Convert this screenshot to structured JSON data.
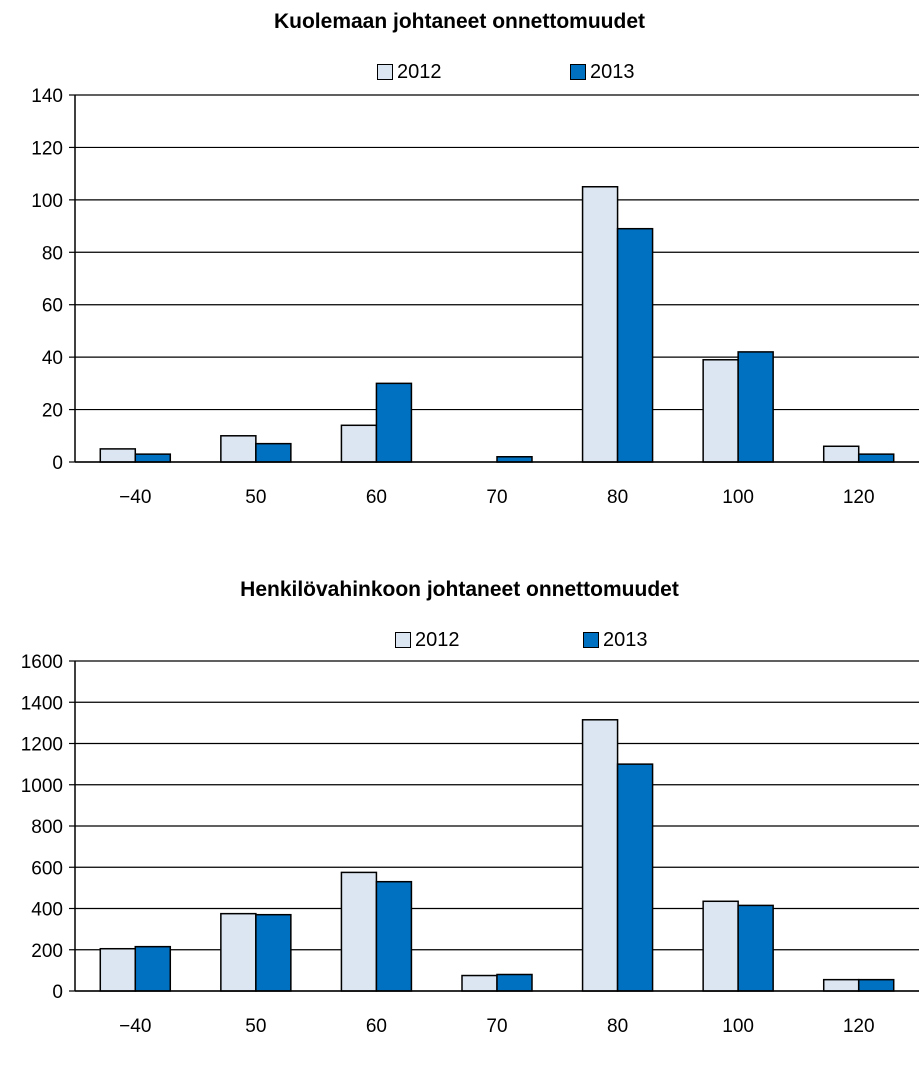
{
  "colors": {
    "series_2012": "#dce6f2",
    "series_2013": "#0070c0",
    "outline": "#000000",
    "grid": "#000000"
  },
  "chart_data": [
    {
      "type": "bar",
      "title": "Kuolemaan johtaneet onnettomuudet",
      "categories": [
        "−40",
        "50",
        "60",
        "70",
        "80",
        "100",
        "120"
      ],
      "series": [
        {
          "name": "2012",
          "values": [
            5,
            10,
            14,
            0,
            105,
            39,
            6
          ]
        },
        {
          "name": "2013",
          "values": [
            3,
            7,
            30,
            2,
            89,
            42,
            3
          ]
        }
      ],
      "ylim": [
        0,
        140
      ],
      "yticks": [
        "0",
        "20",
        "40",
        "60",
        "80",
        "100",
        "120",
        "140"
      ],
      "xlabel": "",
      "ylabel": "",
      "grid": true,
      "legend": "top"
    },
    {
      "type": "bar",
      "title": "Henkilövahinkoon johtaneet onnettomuudet",
      "categories": [
        "−40",
        "50",
        "60",
        "70",
        "80",
        "100",
        "120"
      ],
      "series": [
        {
          "name": "2012",
          "values": [
            205,
            375,
            575,
            75,
            1315,
            435,
            55
          ]
        },
        {
          "name": "2013",
          "values": [
            215,
            370,
            530,
            80,
            1100,
            415,
            55
          ]
        }
      ],
      "ylim": [
        0,
        1600
      ],
      "yticks": [
        "0",
        "200",
        "400",
        "600",
        "800",
        "1000",
        "1200",
        "1400",
        "1600"
      ],
      "xlabel": "",
      "ylabel": "",
      "grid": true,
      "legend": "top"
    }
  ]
}
